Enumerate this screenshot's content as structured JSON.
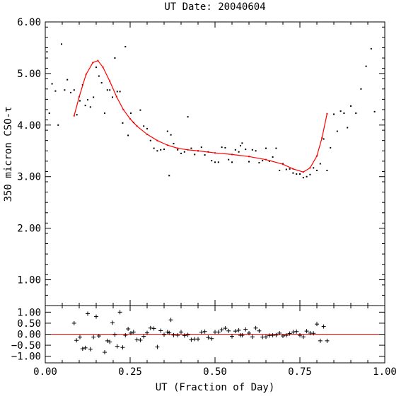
{
  "chart_data": [
    {
      "type": "scatter",
      "panel": "main",
      "title": "UT Date: 20040604",
      "xlabel": "",
      "ylabel": "350 micron CSO-τ",
      "xlim": [
        0.0,
        1.0
      ],
      "ylim": [
        0.5,
        6.0
      ],
      "y_ticks": [
        1.0,
        2.0,
        3.0,
        4.0,
        5.0,
        6.0
      ],
      "y_tick_labels": [
        "1.00",
        "2.00",
        "3.00",
        "4.00",
        "5.00",
        "6.00"
      ],
      "grid": false,
      "series": [
        {
          "marker": "dot",
          "color": "#000000",
          "x": [
            0.005,
            0.012,
            0.02,
            0.03,
            0.038,
            0.048,
            0.057,
            0.065,
            0.075,
            0.085,
            0.093,
            0.102,
            0.11,
            0.118,
            0.125,
            0.133,
            0.142,
            0.15,
            0.158,
            0.166,
            0.175,
            0.183,
            0.19,
            0.198,
            0.205,
            0.212,
            0.22,
            0.228,
            0.236,
            0.244,
            0.252,
            0.26,
            0.28,
            0.29,
            0.3,
            0.31,
            0.32,
            0.33,
            0.34,
            0.35,
            0.36,
            0.365,
            0.37,
            0.378,
            0.39,
            0.4,
            0.41,
            0.42,
            0.43,
            0.44,
            0.45,
            0.46,
            0.47,
            0.48,
            0.49,
            0.5,
            0.51,
            0.52,
            0.53,
            0.54,
            0.55,
            0.56,
            0.57,
            0.575,
            0.58,
            0.59,
            0.6,
            0.61,
            0.62,
            0.63,
            0.64,
            0.65,
            0.66,
            0.67,
            0.68,
            0.69,
            0.7,
            0.71,
            0.72,
            0.73,
            0.74,
            0.75,
            0.76,
            0.77,
            0.78,
            0.79,
            0.8,
            0.81,
            0.82,
            0.83,
            0.84,
            0.85,
            0.86,
            0.87,
            0.88,
            0.89,
            0.9,
            0.915,
            0.93,
            0.945,
            0.96,
            0.97
          ],
          "y": [
            5.42,
            4.23,
            4.8,
            4.66,
            4.0,
            5.57,
            4.68,
            4.88,
            4.63,
            4.68,
            4.2,
            4.47,
            4.78,
            4.38,
            4.49,
            4.35,
            4.54,
            5.12,
            4.95,
            4.82,
            4.23,
            4.68,
            4.68,
            4.54,
            5.3,
            4.65,
            4.65,
            4.04,
            5.52,
            3.8,
            4.23,
            4.05,
            4.29,
            3.98,
            3.93,
            3.7,
            3.55,
            3.5,
            3.52,
            3.53,
            3.88,
            3.02,
            3.81,
            3.64,
            3.52,
            3.45,
            3.48,
            4.16,
            3.55,
            3.43,
            3.5,
            3.57,
            3.42,
            3.48,
            3.31,
            3.28,
            3.28,
            3.57,
            3.56,
            3.33,
            3.28,
            3.52,
            3.48,
            3.6,
            3.65,
            3.53,
            3.29,
            3.52,
            3.5,
            3.27,
            3.31,
            3.55,
            3.3,
            3.38,
            3.55,
            3.12,
            3.25,
            3.14,
            3.15,
            3.07,
            3.05,
            3.05,
            2.98,
            3.0,
            3.04,
            3.17,
            3.12,
            3.25,
            3.73,
            3.12,
            3.56,
            4.21,
            3.88,
            4.27,
            4.23,
            3.95,
            4.37,
            4.23,
            4.7,
            5.14,
            5.48,
            4.26
          ]
        },
        {
          "marker": "line",
          "color": "#ff0000",
          "x": [
            0.085,
            0.1,
            0.12,
            0.14,
            0.155,
            0.17,
            0.19,
            0.21,
            0.23,
            0.25,
            0.27,
            0.3,
            0.33,
            0.36,
            0.39,
            0.42,
            0.45,
            0.5,
            0.55,
            0.6,
            0.65,
            0.7,
            0.73,
            0.76,
            0.78,
            0.8,
            0.815,
            0.83
          ],
          "y": [
            4.18,
            4.55,
            4.98,
            5.21,
            5.25,
            5.12,
            4.85,
            4.55,
            4.3,
            4.12,
            3.98,
            3.82,
            3.7,
            3.61,
            3.55,
            3.52,
            3.5,
            3.46,
            3.43,
            3.39,
            3.33,
            3.24,
            3.15,
            3.09,
            3.17,
            3.4,
            3.75,
            4.22
          ]
        }
      ]
    },
    {
      "type": "scatter",
      "panel": "residuals",
      "xlabel": "UT (Fraction of Day)",
      "ylabel": "",
      "xlim": [
        0.0,
        1.0
      ],
      "ylim": [
        -1.3,
        1.3
      ],
      "x_ticks": [
        0.0,
        0.25,
        0.5,
        0.75,
        1.0
      ],
      "x_tick_labels": [
        "0.00",
        "0.25",
        "0.50",
        "0.75",
        "1.00"
      ],
      "y_ticks": [
        -1.0,
        -0.5,
        0.0,
        0.5,
        1.0
      ],
      "y_tick_labels": [
        "−1.00",
        "−0.50",
        "0.00",
        "0.50",
        "1.00"
      ],
      "grid": false,
      "zero_line_color": "#ff0000",
      "series": [
        {
          "marker": "plus",
          "color": "#000000",
          "x": [
            0.085,
            0.092,
            0.102,
            0.11,
            0.118,
            0.125,
            0.133,
            0.142,
            0.15,
            0.158,
            0.175,
            0.183,
            0.19,
            0.198,
            0.205,
            0.212,
            0.22,
            0.228,
            0.236,
            0.244,
            0.252,
            0.26,
            0.27,
            0.28,
            0.29,
            0.3,
            0.31,
            0.32,
            0.33,
            0.34,
            0.35,
            0.36,
            0.365,
            0.37,
            0.378,
            0.39,
            0.4,
            0.41,
            0.42,
            0.43,
            0.44,
            0.45,
            0.46,
            0.47,
            0.48,
            0.49,
            0.5,
            0.51,
            0.52,
            0.53,
            0.54,
            0.55,
            0.56,
            0.57,
            0.575,
            0.58,
            0.59,
            0.6,
            0.61,
            0.62,
            0.63,
            0.64,
            0.65,
            0.66,
            0.67,
            0.68,
            0.69,
            0.7,
            0.71,
            0.72,
            0.73,
            0.74,
            0.75,
            0.76,
            0.77,
            0.78,
            0.79,
            0.8,
            0.81,
            0.82,
            0.83
          ],
          "y": [
            0.5,
            -0.28,
            -0.13,
            -0.66,
            -0.62,
            0.93,
            -0.68,
            -0.13,
            0.8,
            -0.08,
            -0.82,
            -0.3,
            -0.35,
            0.52,
            -0.02,
            -0.55,
            1.0,
            -0.6,
            -0.05,
            0.24,
            0.05,
            0.1,
            -0.25,
            -0.27,
            -0.1,
            0.06,
            0.28,
            0.26,
            -0.58,
            0.16,
            -0.02,
            0.1,
            0.06,
            0.65,
            -0.04,
            -0.05,
            0.1,
            -0.06,
            -0.03,
            -0.25,
            -0.22,
            -0.22,
            0.09,
            0.12,
            -0.15,
            -0.2,
            0.1,
            0.1,
            0.2,
            0.27,
            0.15,
            -0.1,
            0.14,
            0.18,
            -0.05,
            -0.05,
            0.22,
            0.05,
            -0.12,
            0.28,
            0.15,
            -0.13,
            -0.12,
            -0.06,
            -0.05,
            -0.04,
            0.05,
            -0.08,
            -0.05,
            0.03,
            0.1,
            0.12,
            -0.05,
            -0.12,
            0.14,
            0.05,
            0.04,
            0.46,
            -0.3,
            0.35,
            -0.3
          ]
        }
      ]
    }
  ]
}
